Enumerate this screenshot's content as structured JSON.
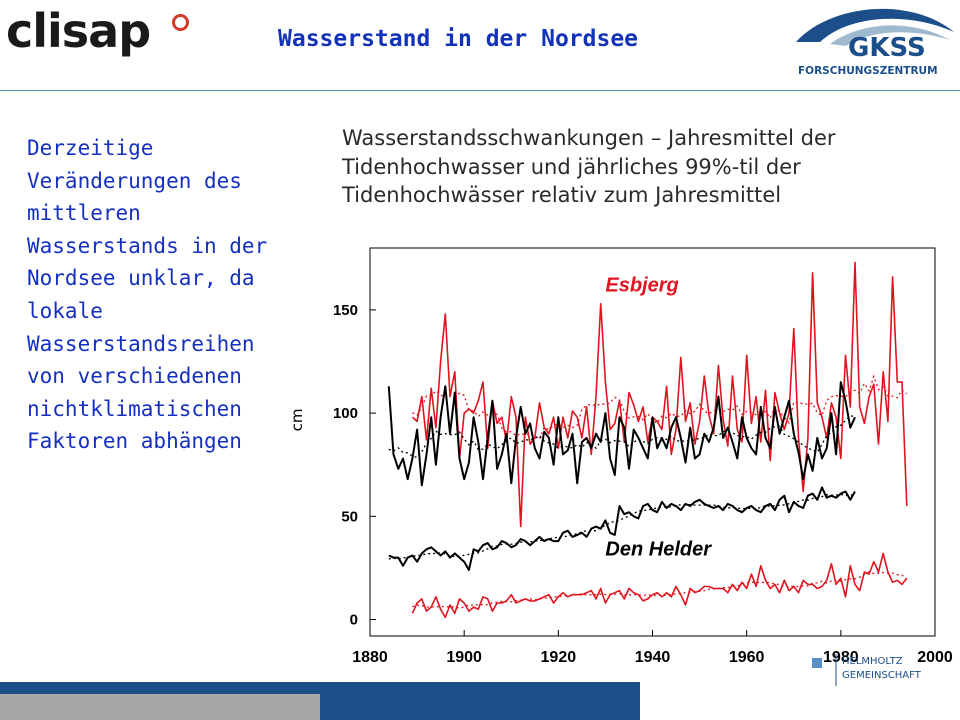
{
  "header": {
    "logo_left": "clisap",
    "title": "Wasserstand in der Nordsee",
    "logo_right_main": "GKSS",
    "logo_right_sub": "FORSCHUNGSZENTRUM"
  },
  "left_text": "Derzeitige Veränderungen des mittleren Wasserstands in der Nordsee unklar, da lokale Wasserstandsreihen von verschiedenen nichtklimatischen Faktoren abhängen",
  "subtitle": "Wasserstandsschwankungen – Jahresmittel der Tidenhochwasser und jährliches 99%-til der Tidenhochwässer relativ zum Jahresmittel",
  "footer": {
    "logo_line1": "HELMHOLTZ",
    "logo_line2": "GEMEINSCHAFT"
  },
  "colors": {
    "title": "#1233b8",
    "left_text": "#1530c0",
    "esbjerg": "#e0141e",
    "den_helder": "#000000",
    "gkss_blue": "#1c4f8a"
  },
  "chart_data": {
    "type": "line",
    "ylabel": "cm",
    "xlim": [
      1880,
      2000
    ],
    "ylim": [
      -8,
      180
    ],
    "x_ticks": [
      1880,
      1900,
      1920,
      1940,
      1960,
      1980,
      2000
    ],
    "y_ticks": [
      0,
      50,
      100,
      150
    ],
    "grid": false,
    "annotations": [
      {
        "text": "Esbjerg",
        "x": 1930,
        "y": 159
      },
      {
        "text": "Den Helder",
        "x": 1930,
        "y": 31
      }
    ],
    "series": [
      {
        "group": "Esbjerg",
        "kind": "99%-til",
        "x_start": 1889,
        "values": [
          98,
          96,
          108,
          87,
          112,
          93,
          125,
          148,
          108,
          120,
          78,
          100,
          102,
          100,
          106,
          115,
          83,
          106,
          95,
          98,
          86,
          108,
          98,
          45,
          98,
          85,
          88,
          105,
          93,
          90,
          98,
          83,
          98,
          88,
          101,
          98,
          88,
          103,
          80,
          108,
          153,
          115,
          92,
          95,
          106,
          86,
          110,
          104,
          96,
          103,
          86,
          98,
          96,
          92,
          113,
          80,
          92,
          127,
          96,
          105,
          85,
          96,
          118,
          99,
          90,
          123,
          97,
          84,
          118,
          92,
          86,
          128,
          95,
          108,
          86,
          111,
          77,
          110,
          100,
          92,
          100,
          141,
          88,
          62,
          88,
          168,
          105,
          98,
          88,
          105,
          98,
          78,
          128,
          103,
          173,
          103,
          95,
          108,
          114,
          85,
          120,
          96,
          166,
          115,
          115,
          55
        ]
      },
      {
        "group": "Esbjerg",
        "kind": "Jahresmittel",
        "x_start": 1889,
        "values": [
          3,
          8,
          10,
          4,
          6,
          11,
          5,
          1,
          7,
          3,
          10,
          8,
          4,
          6,
          5,
          11,
          10,
          4,
          8,
          8,
          9,
          12,
          8,
          9,
          10,
          9,
          9,
          10,
          11,
          12,
          8,
          11,
          13,
          11,
          12,
          12,
          12,
          13,
          14,
          10,
          15,
          8,
          12,
          13,
          14,
          10,
          15,
          13,
          12,
          9,
          10,
          12,
          13,
          11,
          13,
          11,
          16,
          12,
          7,
          15,
          13,
          14,
          16,
          16,
          15,
          15,
          15,
          13,
          17,
          14,
          18,
          15,
          22,
          16,
          26,
          19,
          15,
          17,
          13,
          19,
          14,
          16,
          13,
          19,
          17,
          17,
          15,
          16,
          19,
          27,
          17,
          20,
          11,
          26,
          17,
          14,
          23,
          22,
          28,
          23,
          32,
          23,
          18,
          19,
          17,
          20
        ]
      },
      {
        "group": "Den Helder",
        "kind": "99%-til",
        "x_start": 1884,
        "values": [
          113,
          80,
          73,
          78,
          68,
          78,
          92,
          65,
          80,
          98,
          75,
          98,
          113,
          90,
          110,
          78,
          68,
          76,
          98,
          86,
          68,
          88,
          106,
          73,
          80,
          90,
          66,
          88,
          103,
          90,
          95,
          83,
          78,
          91,
          88,
          75,
          98,
          80,
          82,
          90,
          66,
          86,
          88,
          83,
          90,
          86,
          100,
          78,
          70,
          98,
          93,
          73,
          92,
          88,
          83,
          78,
          98,
          83,
          88,
          83,
          93,
          98,
          88,
          76,
          93,
          78,
          80,
          90,
          86,
          93,
          108,
          88,
          93,
          86,
          78,
          98,
          88,
          83,
          80,
          103,
          88,
          83,
          103,
          90,
          98,
          106,
          90,
          81,
          68,
          80,
          72,
          88,
          78,
          83,
          100,
          80,
          115,
          106,
          93,
          98
        ]
      },
      {
        "group": "Den Helder",
        "kind": "Jahresmittel",
        "x_start": 1884,
        "values": [
          31,
          30,
          30,
          26,
          30,
          31,
          28,
          32,
          34,
          35,
          33,
          31,
          33,
          30,
          32,
          30,
          28,
          24,
          34,
          33,
          36,
          37,
          34,
          35,
          38,
          37,
          35,
          36,
          39,
          38,
          36,
          38,
          40,
          38,
          39,
          38,
          38,
          42,
          43,
          40,
          41,
          42,
          40,
          44,
          45,
          44,
          48,
          42,
          41,
          55,
          51,
          52,
          50,
          49,
          55,
          56,
          53,
          52,
          57,
          54,
          56,
          55,
          53,
          56,
          55,
          57,
          58,
          56,
          55,
          54,
          55,
          53,
          56,
          55,
          53,
          52,
          54,
          55,
          53,
          52,
          55,
          56,
          53,
          58,
          60,
          52,
          57,
          55,
          54,
          60,
          61,
          58,
          64,
          59,
          60,
          59,
          61,
          62,
          58,
          62
        ]
      }
    ]
  }
}
